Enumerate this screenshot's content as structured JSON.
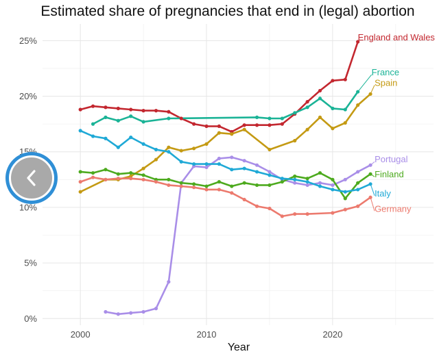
{
  "chart_data": {
    "type": "line",
    "title": "Estimated share of pregnancies that end in (legal) abortion",
    "xlabel": "Year",
    "ylabel": "",
    "xlim": [
      1997,
      2028
    ],
    "ylim": [
      -0.6,
      26.5
    ],
    "x_ticks": [
      2000,
      2010,
      2020
    ],
    "x_tick_labels": [
      "2000",
      "2010",
      "2020"
    ],
    "y_ticks": [
      0,
      5,
      10,
      15,
      20,
      25
    ],
    "y_tick_labels": [
      "0%",
      "5%",
      "10%",
      "15%",
      "20%",
      "25%"
    ],
    "grid": true,
    "legend": "none",
    "series": [
      {
        "name": "England and Wales",
        "color": "#c3272f",
        "x": [
          2000,
          2001,
          2002,
          2003,
          2004,
          2005,
          2006,
          2007,
          2008,
          2009,
          2010,
          2011,
          2012,
          2013,
          2014,
          2015,
          2016,
          2017,
          2018,
          2019,
          2020,
          2021,
          2022
        ],
        "y": [
          18.8,
          19.1,
          19.0,
          18.9,
          18.8,
          18.7,
          18.7,
          18.6,
          18.0,
          17.5,
          17.3,
          17.3,
          16.8,
          17.4,
          17.4,
          17.4,
          17.5,
          18.4,
          19.5,
          20.5,
          21.4,
          21.5,
          24.9
        ]
      },
      {
        "name": "France",
        "color": "#1ab396",
        "x": [
          2001,
          2002,
          2003,
          2004,
          2005,
          2007,
          2014,
          2015,
          2016,
          2017,
          2018,
          2019,
          2020,
          2021,
          2022
        ],
        "y": [
          17.5,
          18.1,
          17.8,
          18.2,
          17.7,
          18.0,
          18.1,
          18.0,
          18.0,
          18.5,
          19.0,
          19.8,
          18.9,
          18.8,
          20.4
        ]
      },
      {
        "name": "Spain",
        "color": "#c49a13",
        "x": [
          2000,
          2002,
          2003,
          2004,
          2005,
          2006,
          2007,
          2008,
          2009,
          2010,
          2011,
          2012,
          2013,
          2015,
          2017,
          2018,
          2019,
          2020,
          2021,
          2022,
          2023
        ],
        "y": [
          11.4,
          12.5,
          12.5,
          12.8,
          13.5,
          14.3,
          15.4,
          15.1,
          15.3,
          15.7,
          16.7,
          16.6,
          17.0,
          15.2,
          16.0,
          17.0,
          18.1,
          17.1,
          17.6,
          19.2,
          20.2
        ]
      },
      {
        "name": "Portugal",
        "color": "#a98ee8",
        "x": [
          2002,
          2003,
          2004,
          2005,
          2006,
          2007,
          2008,
          2009,
          2010,
          2011,
          2012,
          2013,
          2014,
          2015,
          2016,
          2017,
          2018,
          2019,
          2020,
          2021,
          2022,
          2023
        ],
        "y": [
          0.6,
          0.4,
          0.5,
          0.6,
          0.9,
          3.3,
          12.2,
          13.7,
          13.6,
          14.4,
          14.5,
          14.2,
          13.8,
          13.2,
          12.5,
          12.2,
          12.0,
          12.2,
          12.0,
          12.5,
          13.2,
          13.8
        ]
      },
      {
        "name": "Finland",
        "color": "#4daa1e",
        "x": [
          2000,
          2001,
          2002,
          2003,
          2004,
          2005,
          2006,
          2007,
          2008,
          2009,
          2010,
          2011,
          2012,
          2013,
          2014,
          2015,
          2016,
          2017,
          2018,
          2019,
          2020,
          2021,
          2022,
          2023
        ],
        "y": [
          13.2,
          13.1,
          13.4,
          13.0,
          13.1,
          12.9,
          12.5,
          12.5,
          12.2,
          12.1,
          11.9,
          12.3,
          11.9,
          12.2,
          12.0,
          12.0,
          12.3,
          12.8,
          12.6,
          13.1,
          12.5,
          10.8,
          12.2,
          13.0
        ]
      },
      {
        "name": "Italy",
        "color": "#1fa9d6",
        "x": [
          2000,
          2001,
          2002,
          2003,
          2004,
          2005,
          2006,
          2007,
          2008,
          2009,
          2010,
          2011,
          2012,
          2013,
          2014,
          2015,
          2016,
          2017,
          2018,
          2019,
          2020,
          2021,
          2022,
          2023
        ],
        "y": [
          16.9,
          16.4,
          16.2,
          15.4,
          16.3,
          15.7,
          15.2,
          15.0,
          14.1,
          13.9,
          13.9,
          13.9,
          13.4,
          13.5,
          13.2,
          12.9,
          12.6,
          12.5,
          12.3,
          11.9,
          11.6,
          11.4,
          11.6,
          12.1
        ]
      },
      {
        "name": "Germany",
        "color": "#ec7a6e",
        "x": [
          2000,
          2001,
          2002,
          2003,
          2004,
          2005,
          2006,
          2007,
          2008,
          2009,
          2010,
          2011,
          2012,
          2013,
          2014,
          2015,
          2016,
          2017,
          2018,
          2020,
          2021,
          2022,
          2023
        ],
        "y": [
          12.3,
          12.7,
          12.5,
          12.6,
          12.6,
          12.5,
          12.3,
          12.0,
          11.9,
          11.8,
          11.6,
          11.6,
          11.3,
          10.7,
          10.1,
          9.9,
          9.2,
          9.4,
          9.4,
          9.5,
          9.8,
          10.1,
          10.9
        ]
      }
    ],
    "end_labels": [
      {
        "series": "England and Wales",
        "text": "England and Wales"
      },
      {
        "series": "France",
        "text": "France"
      },
      {
        "series": "Spain",
        "text": "Spain"
      },
      {
        "series": "Portugal",
        "text": "Portugal"
      },
      {
        "series": "Finland",
        "text": "Finland"
      },
      {
        "series": "Italy",
        "text": "Italy"
      },
      {
        "series": "Germany",
        "text": "Germany"
      }
    ]
  },
  "nav": {
    "back_icon": "chevron-left-icon"
  }
}
